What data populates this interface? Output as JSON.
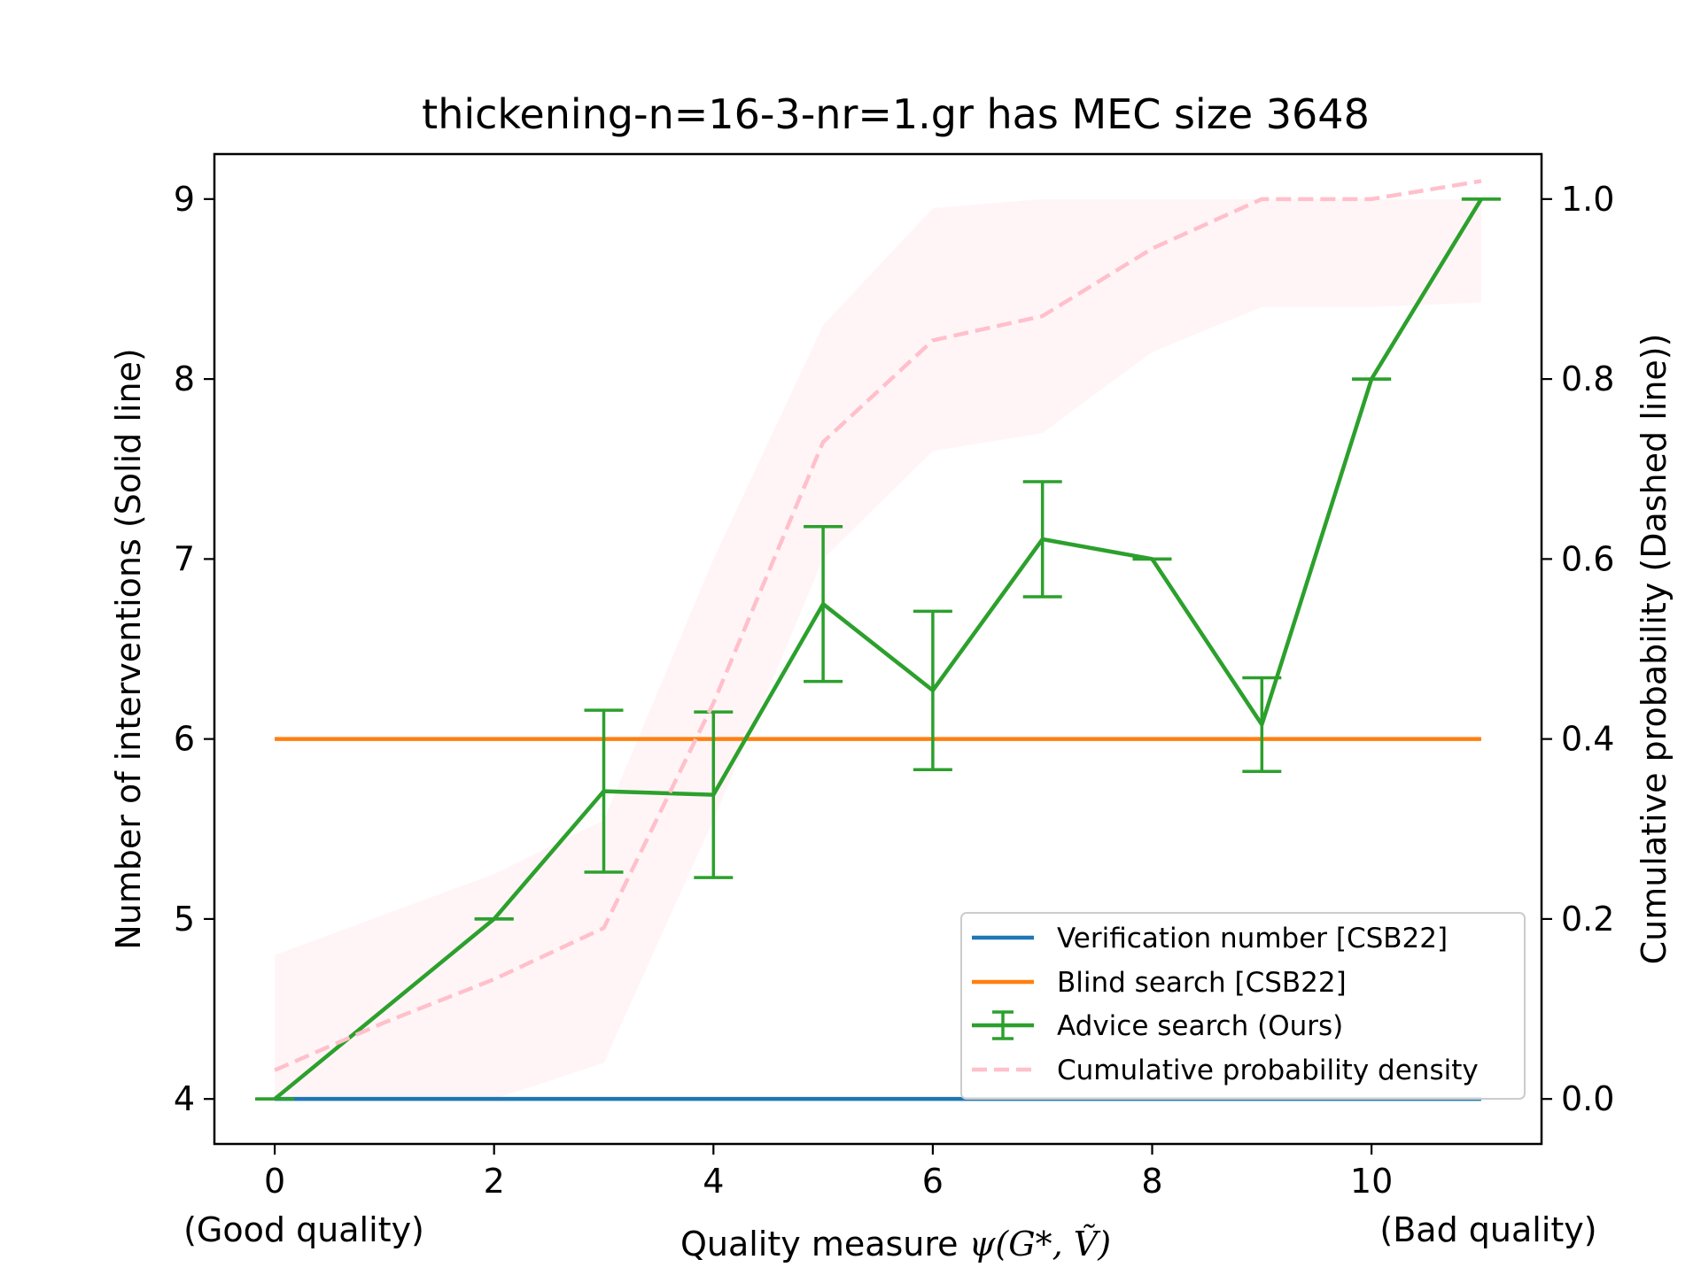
{
  "chart_data": {
    "type": "line",
    "title": "thickening-n=16-3-nr=1.gr has MEC size 3648",
    "xlabel_prefix": "Quality measure ",
    "xlabel_math": "ψ(G*, Ṽ)",
    "xlabel_left_note": "(Good quality)",
    "xlabel_right_note": "(Bad quality)",
    "ylabel_left": "Number of interventions (Solid line)",
    "ylabel_right": "Cumulative probability (Dashed line))",
    "xlim": [
      -0.55,
      11.55
    ],
    "ylim_left": [
      3.75,
      9.25
    ],
    "ylim_right": [
      -0.05,
      1.05
    ],
    "xticks": [
      0,
      2,
      4,
      6,
      8,
      10
    ],
    "yticks_left": [
      4,
      5,
      6,
      7,
      8,
      9
    ],
    "yticks_right": [
      0.0,
      0.2,
      0.4,
      0.6,
      0.8,
      1.0
    ],
    "grid": false,
    "legend_position": "lower right",
    "series": [
      {
        "name": "Verification number [CSB22]",
        "color": "#1f77b4",
        "axis": "left",
        "style": "solid",
        "x": [
          0,
          11
        ],
        "y": [
          4,
          4
        ]
      },
      {
        "name": "Blind search [CSB22]",
        "color": "#ff7f0e",
        "axis": "left",
        "style": "solid",
        "x": [
          0,
          11
        ],
        "y": [
          6,
          6
        ]
      },
      {
        "name": "Advice search (Ours)",
        "color": "#2ca02c",
        "axis": "left",
        "style": "errorbar",
        "x": [
          0,
          2,
          3,
          4,
          5,
          6,
          7,
          8,
          9,
          10,
          11
        ],
        "y": [
          4.0,
          5.0,
          5.71,
          5.69,
          6.75,
          6.27,
          7.11,
          7.0,
          6.08,
          8.0,
          9.0
        ],
        "yerr": [
          0.0,
          0.0,
          0.45,
          0.46,
          0.43,
          0.44,
          0.32,
          0.0,
          0.26,
          0.0,
          0.0
        ]
      },
      {
        "name": "Cumulative probability density",
        "color": "#ffc0cb",
        "axis": "right",
        "style": "dashed",
        "x": [
          0,
          1,
          2,
          3,
          4,
          5,
          6,
          7,
          8,
          9,
          10,
          11
        ],
        "y": [
          0.032,
          0.085,
          0.133,
          0.19,
          0.44,
          0.73,
          0.843,
          0.87,
          0.945,
          1.0,
          1.0,
          1.02
        ],
        "band_low": [
          0.0,
          0.0,
          0.0,
          0.04,
          0.31,
          0.6,
          0.72,
          0.74,
          0.83,
          0.88,
          0.88,
          0.885
        ],
        "band_high": [
          0.16,
          0.205,
          0.25,
          0.31,
          0.6,
          0.86,
          0.99,
          1.0,
          1.0,
          1.0,
          1.0,
          1.0
        ]
      }
    ]
  }
}
